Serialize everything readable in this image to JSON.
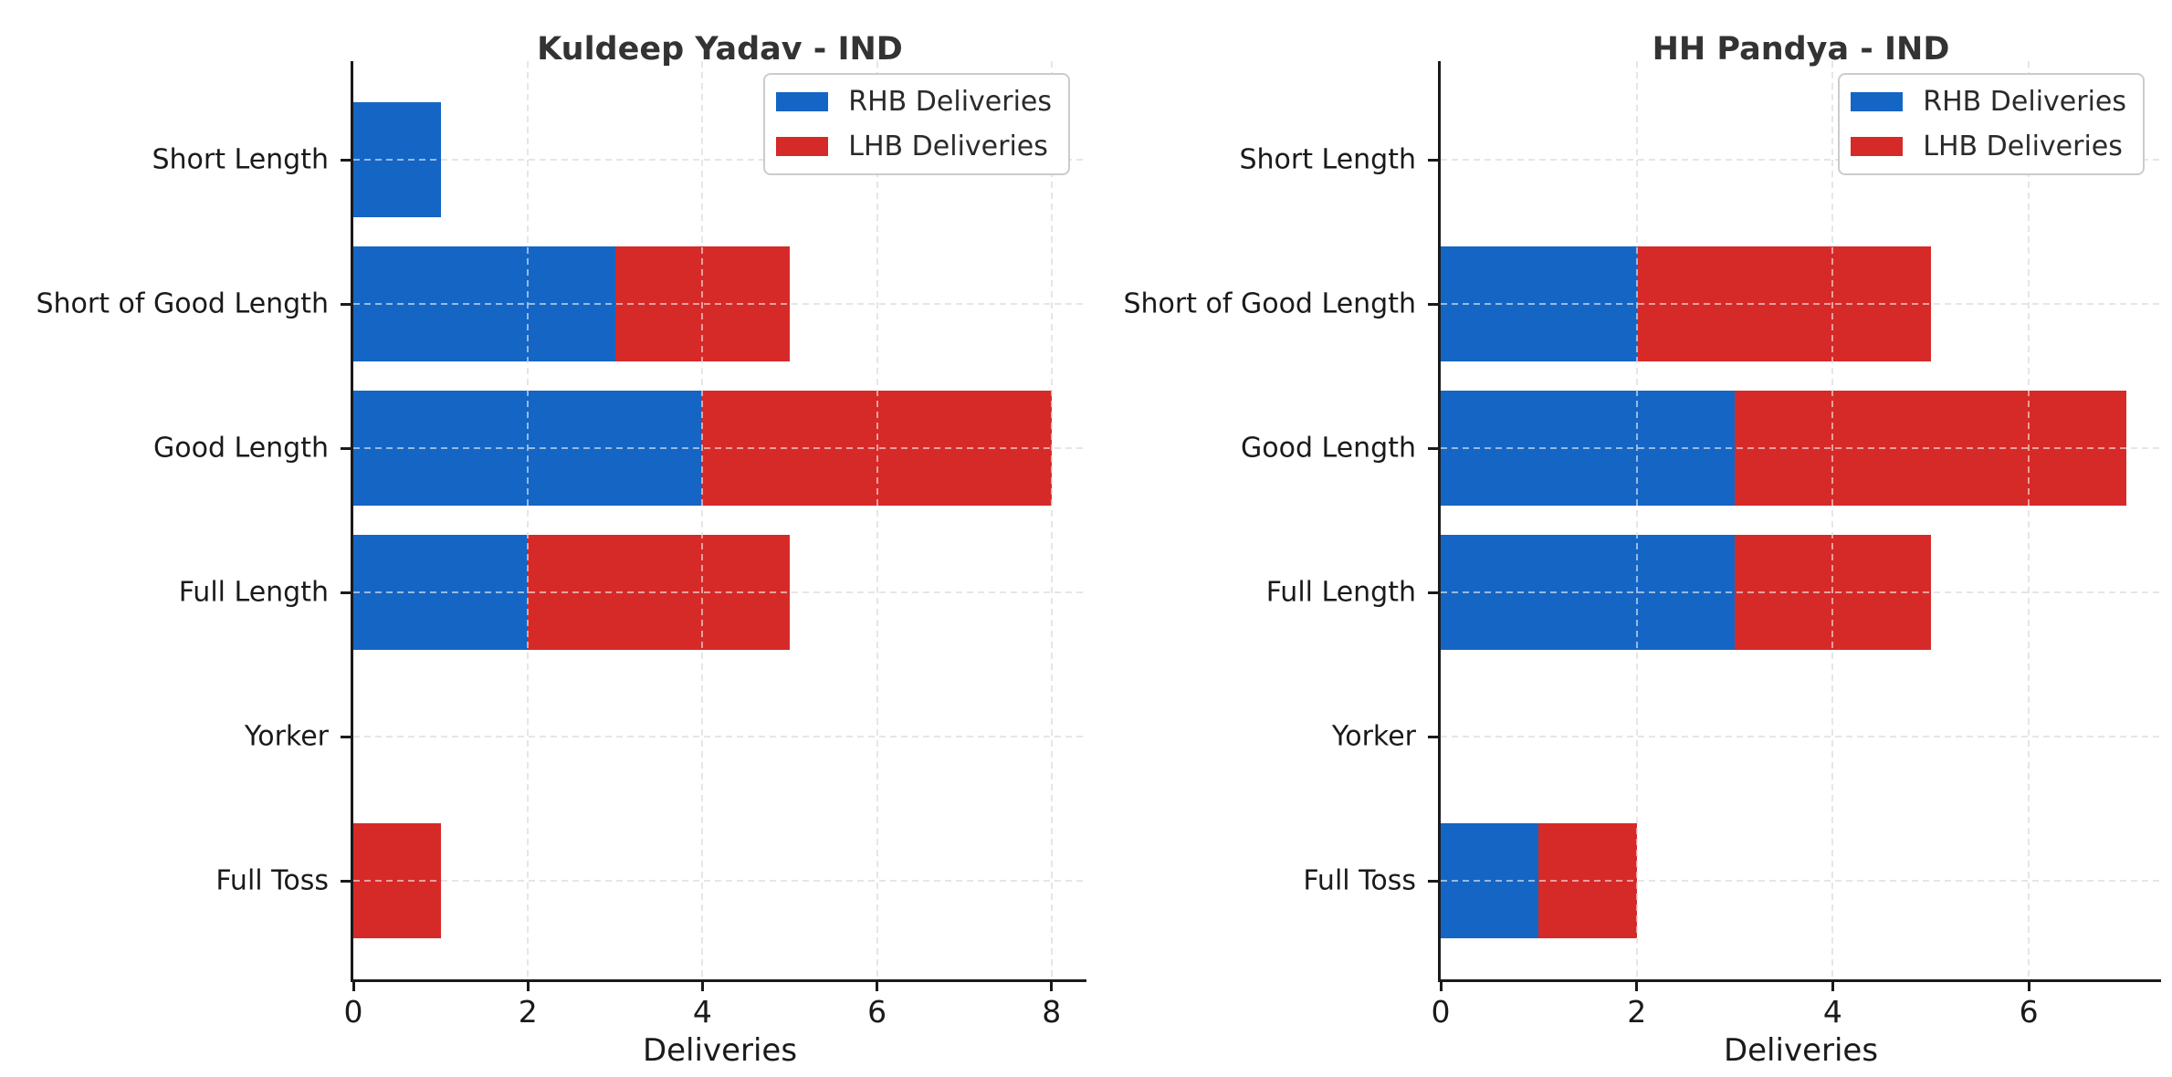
{
  "figure": {
    "background": "#ffffff"
  },
  "colors": {
    "rhb_blue": "#1565c4",
    "lhb_red": "#d62a28",
    "axis": "#1a1a1a",
    "grid": "#c8c8c8",
    "title_text": "#333333"
  },
  "chart_data": [
    {
      "type": "bar",
      "orientation": "horizontal",
      "stacked": true,
      "title": "Kuldeep Yadav - IND",
      "xlabel": "Deliveries",
      "categories": [
        "Short Length",
        "Short of Good Length",
        "Good Length",
        "Full Length",
        "Yorker",
        "Full Toss"
      ],
      "series": [
        {
          "name": "RHB Deliveries",
          "color": "#1565c4",
          "values": [
            1,
            3,
            4,
            2,
            0,
            0
          ]
        },
        {
          "name": "LHB Deliveries",
          "color": "#d62a28",
          "values": [
            0,
            2,
            4,
            3,
            0,
            1
          ]
        }
      ],
      "totals": [
        1,
        5,
        8,
        5,
        0,
        1
      ],
      "xlim": [
        0,
        8.4
      ],
      "xticks": [
        0,
        2,
        4,
        6,
        8
      ],
      "grid": "dashed, both axes",
      "legend_position": "upper right"
    },
    {
      "type": "bar",
      "orientation": "horizontal",
      "stacked": true,
      "title": "HH Pandya - IND",
      "xlabel": "Deliveries",
      "categories": [
        "Short Length",
        "Short of Good Length",
        "Good Length",
        "Full Length",
        "Yorker",
        "Full Toss"
      ],
      "series": [
        {
          "name": "RHB Deliveries",
          "color": "#1565c4",
          "values": [
            0,
            2,
            3,
            3,
            0,
            1
          ]
        },
        {
          "name": "LHB Deliveries",
          "color": "#d62a28",
          "values": [
            0,
            3,
            4,
            2,
            0,
            1
          ]
        }
      ],
      "totals": [
        0,
        5,
        7,
        5,
        0,
        2
      ],
      "xlim": [
        0,
        7.35
      ],
      "xticks": [
        0,
        2,
        4,
        6
      ],
      "grid": "dashed, both axes",
      "legend_position": "upper right"
    }
  ]
}
